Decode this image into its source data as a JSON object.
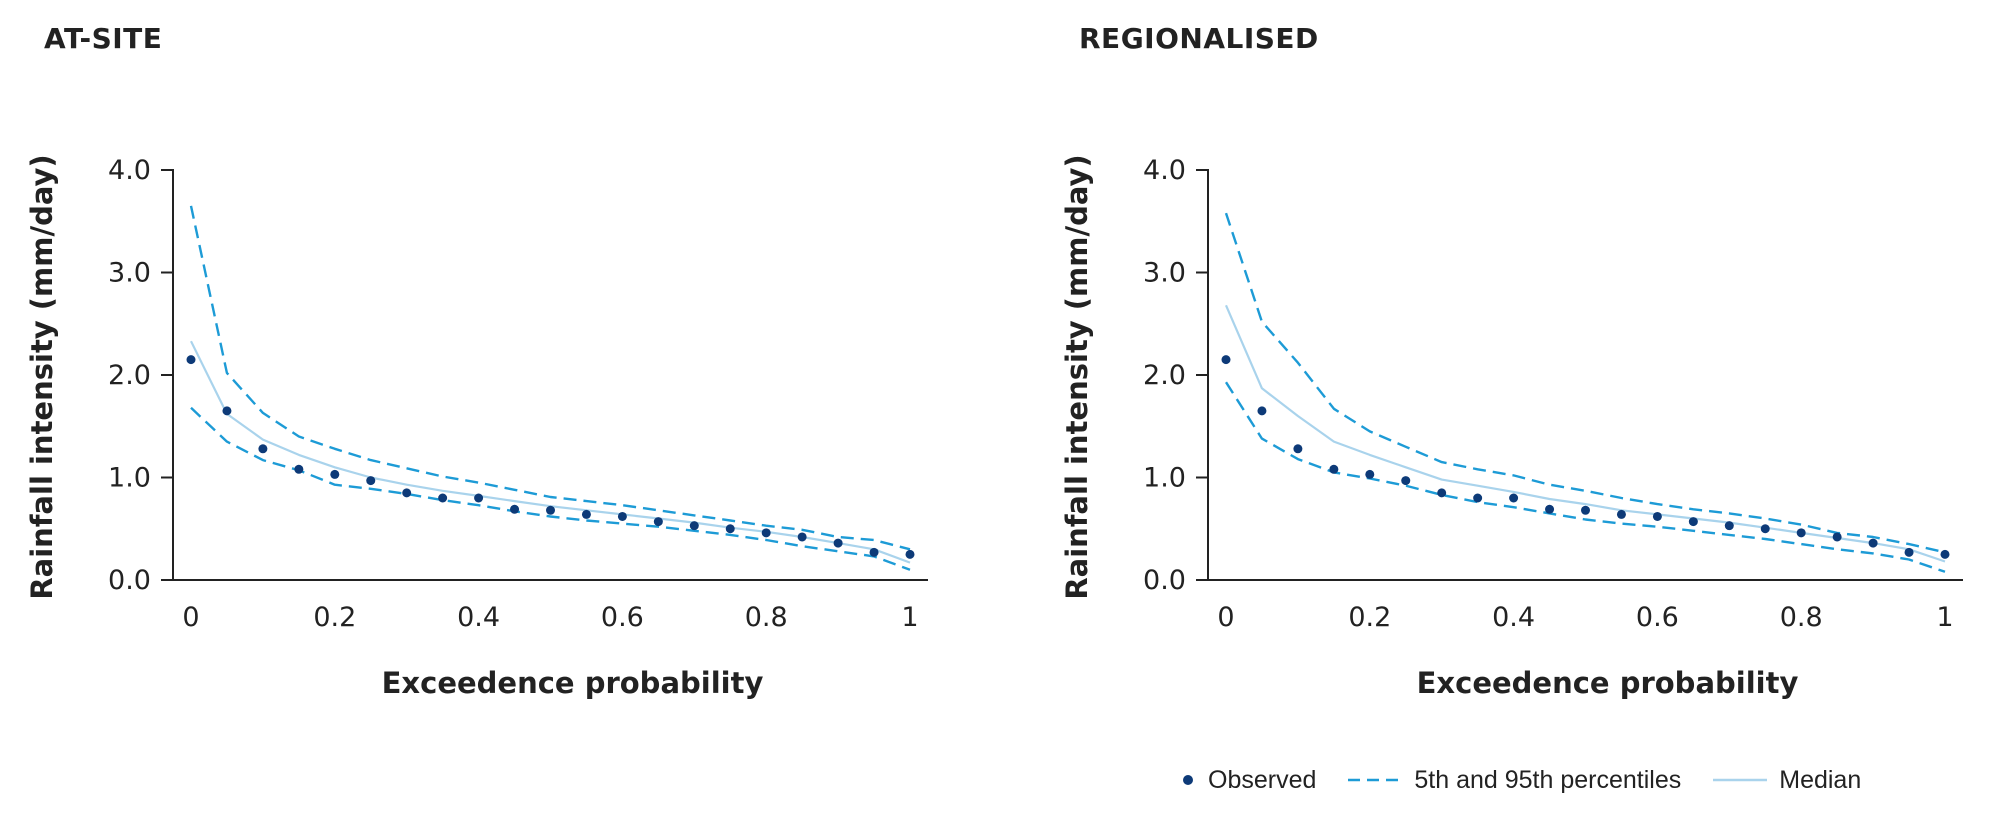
{
  "colors": {
    "observed": "#0d3a78",
    "percentile": "#1d9bd6",
    "median": "#a9d3ec",
    "axis": "#222222"
  },
  "legend": {
    "observed": "Observed",
    "percentiles": "5th and 95th percentiles",
    "median": "Median"
  },
  "chart_data": [
    {
      "type": "line",
      "title": "AT-SITE",
      "xlabel": "Exceedence probability",
      "ylabel": "Rainfall intensity (mm/day)",
      "xlim": [
        0,
        1
      ],
      "ylim": [
        0,
        4
      ],
      "xticks": [
        "0",
        "0.2",
        "0.4",
        "0.6",
        "0.8",
        "1"
      ],
      "yticks": [
        "0.0",
        "1.0",
        "2.0",
        "3.0",
        "4.0"
      ],
      "grid": false,
      "series": [
        {
          "name": "Observed",
          "kind": "scatter",
          "x": [
            0,
            0.05,
            0.1,
            0.15,
            0.2,
            0.25,
            0.3,
            0.35,
            0.4,
            0.45,
            0.5,
            0.55,
            0.6,
            0.65,
            0.7,
            0.75,
            0.8,
            0.85,
            0.9,
            0.95,
            1.0
          ],
          "y": [
            2.15,
            1.65,
            1.28,
            1.08,
            1.03,
            0.97,
            0.85,
            0.8,
            0.8,
            0.69,
            0.68,
            0.64,
            0.62,
            0.57,
            0.53,
            0.5,
            0.46,
            0.42,
            0.36,
            0.27,
            0.25
          ]
        },
        {
          "name": "95th percentile",
          "kind": "dashed",
          "x": [
            0,
            0.05,
            0.1,
            0.15,
            0.2,
            0.25,
            0.3,
            0.35,
            0.4,
            0.45,
            0.5,
            0.55,
            0.6,
            0.65,
            0.7,
            0.75,
            0.8,
            0.85,
            0.9,
            0.95,
            1.0
          ],
          "y": [
            3.65,
            2.02,
            1.63,
            1.4,
            1.28,
            1.17,
            1.09,
            1.01,
            0.95,
            0.88,
            0.81,
            0.77,
            0.73,
            0.68,
            0.63,
            0.58,
            0.53,
            0.49,
            0.42,
            0.39,
            0.3
          ]
        },
        {
          "name": "5th percentile",
          "kind": "dashed",
          "x": [
            0,
            0.05,
            0.1,
            0.15,
            0.2,
            0.25,
            0.3,
            0.35,
            0.4,
            0.45,
            0.5,
            0.55,
            0.6,
            0.65,
            0.7,
            0.75,
            0.8,
            0.85,
            0.9,
            0.95,
            1.0
          ],
          "y": [
            1.68,
            1.35,
            1.17,
            1.07,
            0.93,
            0.89,
            0.84,
            0.78,
            0.73,
            0.67,
            0.62,
            0.58,
            0.55,
            0.52,
            0.48,
            0.44,
            0.39,
            0.33,
            0.28,
            0.23,
            0.1
          ]
        },
        {
          "name": "Median",
          "kind": "solid",
          "x": [
            0,
            0.05,
            0.1,
            0.15,
            0.2,
            0.25,
            0.3,
            0.35,
            0.4,
            0.45,
            0.5,
            0.55,
            0.6,
            0.65,
            0.7,
            0.75,
            0.8,
            0.85,
            0.9,
            0.95,
            1.0
          ],
          "y": [
            2.33,
            1.62,
            1.37,
            1.22,
            1.1,
            1.0,
            0.93,
            0.87,
            0.82,
            0.77,
            0.72,
            0.68,
            0.64,
            0.6,
            0.56,
            0.51,
            0.47,
            0.42,
            0.36,
            0.3,
            0.17
          ]
        }
      ]
    },
    {
      "type": "line",
      "title": "REGIONALISED",
      "xlabel": "Exceedence probability",
      "ylabel": "Rainfall intensity (mm/day)",
      "xlim": [
        0,
        1
      ],
      "ylim": [
        0,
        4
      ],
      "xticks": [
        "0",
        "0.2",
        "0.4",
        "0.6",
        "0.8",
        "1"
      ],
      "yticks": [
        "0.0",
        "1.0",
        "2.0",
        "3.0",
        "4.0"
      ],
      "grid": false,
      "series": [
        {
          "name": "Observed",
          "kind": "scatter",
          "x": [
            0,
            0.05,
            0.1,
            0.15,
            0.2,
            0.25,
            0.3,
            0.35,
            0.4,
            0.45,
            0.5,
            0.55,
            0.6,
            0.65,
            0.7,
            0.75,
            0.8,
            0.85,
            0.9,
            0.95,
            1.0
          ],
          "y": [
            2.15,
            1.65,
            1.28,
            1.08,
            1.03,
            0.97,
            0.85,
            0.8,
            0.8,
            0.69,
            0.68,
            0.64,
            0.62,
            0.57,
            0.53,
            0.5,
            0.46,
            0.42,
            0.36,
            0.27,
            0.25
          ]
        },
        {
          "name": "95th percentile",
          "kind": "dashed",
          "x": [
            0,
            0.05,
            0.1,
            0.15,
            0.2,
            0.25,
            0.3,
            0.35,
            0.4,
            0.45,
            0.5,
            0.55,
            0.6,
            0.65,
            0.7,
            0.75,
            0.8,
            0.85,
            0.9,
            0.95,
            1.0
          ],
          "y": [
            3.58,
            2.52,
            2.12,
            1.67,
            1.45,
            1.3,
            1.15,
            1.08,
            1.02,
            0.93,
            0.87,
            0.8,
            0.74,
            0.69,
            0.65,
            0.6,
            0.54,
            0.46,
            0.42,
            0.35,
            0.27
          ]
        },
        {
          "name": "5th percentile",
          "kind": "dashed",
          "x": [
            0,
            0.05,
            0.1,
            0.15,
            0.2,
            0.25,
            0.3,
            0.35,
            0.4,
            0.45,
            0.5,
            0.55,
            0.6,
            0.65,
            0.7,
            0.75,
            0.8,
            0.85,
            0.9,
            0.95,
            1.0
          ],
          "y": [
            1.93,
            1.38,
            1.18,
            1.05,
            0.99,
            0.92,
            0.83,
            0.76,
            0.71,
            0.65,
            0.59,
            0.55,
            0.52,
            0.48,
            0.44,
            0.4,
            0.35,
            0.3,
            0.26,
            0.2,
            0.08
          ]
        },
        {
          "name": "Median",
          "kind": "solid",
          "x": [
            0,
            0.05,
            0.1,
            0.15,
            0.2,
            0.25,
            0.3,
            0.35,
            0.4,
            0.45,
            0.5,
            0.55,
            0.6,
            0.65,
            0.7,
            0.75,
            0.8,
            0.85,
            0.9,
            0.95,
            1.0
          ],
          "y": [
            2.68,
            1.87,
            1.6,
            1.35,
            1.22,
            1.1,
            0.98,
            0.92,
            0.86,
            0.79,
            0.74,
            0.68,
            0.64,
            0.6,
            0.56,
            0.51,
            0.46,
            0.41,
            0.36,
            0.3,
            0.18
          ]
        }
      ]
    }
  ]
}
